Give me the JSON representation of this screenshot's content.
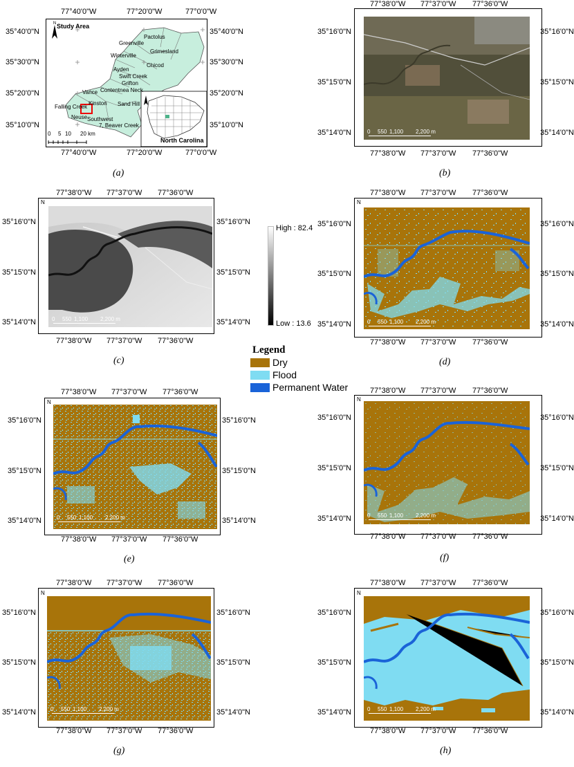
{
  "legend": {
    "title": "Legend",
    "items": [
      {
        "label": "Dry",
        "color": "#a8740a"
      },
      {
        "label": "Flood",
        "color": "#7fdcf2"
      },
      {
        "label": "Permanent Water",
        "color": "#1a63d8"
      }
    ]
  },
  "panel_a": {
    "caption": "(a)",
    "title": "Study Area",
    "inset_label": "North Carolina",
    "lon_labels": [
      "77°40'0\"W",
      "77°20'0\"W",
      "77°0'0\"W"
    ],
    "lat_labels": [
      "35°40'0\"N",
      "35°30'0\"N",
      "35°20'0\"N",
      "35°10'0\"N"
    ],
    "scale_labels": [
      "0",
      "5",
      "10",
      "20 km"
    ],
    "places": [
      "Pactolus",
      "Greenville",
      "Grimesland",
      "Winterville",
      "Chicod",
      "Ayden",
      "Swift Creek",
      "Grifton",
      "Contentnea Neck",
      "Vance",
      "Falling Creek",
      "Kinston",
      "Sand Hill",
      "Neuse",
      "Southwest",
      "7, Beaver Creek"
    ]
  },
  "detail_coords": {
    "lon_labels": [
      "77°38'0\"W",
      "77°37'0\"W",
      "77°36'0\"W"
    ],
    "lat_labels": [
      "35°16'0\"N",
      "35°15'0\"N",
      "35°14'0\"N"
    ],
    "scale_labels": [
      "0",
      "550",
      "1,100",
      "2,200 m"
    ],
    "north": "N"
  },
  "panel_c": {
    "high_label": "High : 82.4",
    "low_label": "Low : 13.6"
  },
  "captions": [
    "(b)",
    "(c)",
    "(d)",
    "(e)",
    "(f)",
    "(g)",
    "(h)"
  ]
}
